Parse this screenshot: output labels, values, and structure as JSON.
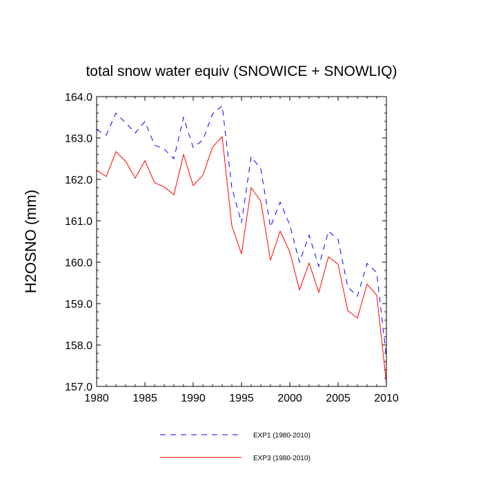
{
  "chart_data": {
    "type": "line",
    "title": "total snow water equiv (SNOWICE + SNOWLIQ)",
    "xlabel": "",
    "ylabel": "H2OSNO  (mm)",
    "xlim": [
      1980,
      2010
    ],
    "ylim": [
      157.0,
      164.0
    ],
    "x_ticks": [
      1980,
      1985,
      1990,
      1995,
      2000,
      2005,
      2010
    ],
    "x_tick_labels": [
      "1980",
      "1985",
      "1990",
      "1995",
      "2000",
      "2005",
      "2010"
    ],
    "y_ticks": [
      157.0,
      158.0,
      159.0,
      160.0,
      161.0,
      162.0,
      163.0,
      164.0
    ],
    "y_tick_labels": [
      "157.0",
      "158.0",
      "159.0",
      "160.0",
      "161.0",
      "162.0",
      "163.0",
      "164.0"
    ],
    "grid": false,
    "legend_position": "bottom",
    "x": [
      1980,
      1981,
      1982,
      1983,
      1984,
      1985,
      1986,
      1987,
      1988,
      1989,
      1990,
      1991,
      1992,
      1993,
      1994,
      1995,
      1996,
      1997,
      1998,
      1999,
      2000,
      2001,
      2002,
      2003,
      2004,
      2005,
      2006,
      2007,
      2008,
      2009,
      2010
    ],
    "series": [
      {
        "name": "EXP1 (1980-2010)",
        "color": "#0000ff",
        "dash": "dashed",
        "values": [
          163.2,
          163.07,
          163.6,
          163.37,
          163.12,
          163.4,
          162.83,
          162.73,
          162.5,
          163.5,
          162.77,
          162.95,
          163.58,
          163.78,
          161.8,
          160.95,
          162.55,
          162.25,
          160.85,
          161.45,
          160.9,
          160.0,
          160.65,
          159.9,
          160.75,
          160.55,
          159.4,
          159.18,
          159.97,
          159.75,
          157.7
        ]
      },
      {
        "name": "EXP3 (1980-2010)",
        "color": "#ff0000",
        "dash": "solid",
        "values": [
          162.22,
          162.07,
          162.67,
          162.44,
          162.03,
          162.45,
          161.92,
          161.82,
          161.63,
          162.6,
          161.85,
          162.1,
          162.78,
          163.03,
          160.88,
          160.2,
          161.8,
          161.47,
          160.05,
          160.75,
          160.25,
          159.33,
          159.98,
          159.27,
          160.13,
          159.95,
          158.83,
          158.65,
          159.47,
          159.2,
          157.08
        ]
      }
    ]
  }
}
